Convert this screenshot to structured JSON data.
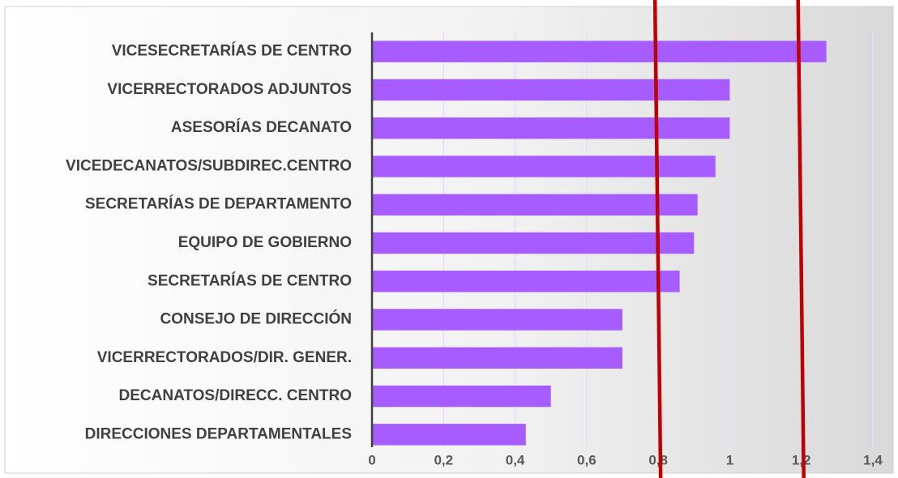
{
  "chart_data": {
    "type": "bar",
    "orientation": "horizontal",
    "categories": [
      "VICESECRETARÍAS DE CENTRO",
      "VICERRECTORADOS ADJUNTOS",
      "ASESORÍAS DECANATO",
      "VICEDECANATOS/SUBDIREC.CENTRO",
      "SECRETARÍAS DE DEPARTAMENTO",
      "EQUIPO DE GOBIERNO",
      "SECRETARÍAS DE CENTRO",
      "CONSEJO DE DIRECCIÓN",
      "VICERRECTORADOS/DIR. GENER.",
      "DECANATOS/DIRECC. CENTRO",
      "DIRECCIONES DEPARTAMENTALES"
    ],
    "values": [
      1.27,
      1.0,
      1.0,
      0.96,
      0.91,
      0.9,
      0.86,
      0.7,
      0.7,
      0.5,
      0.43
    ],
    "color": "#a65cff",
    "xlim": [
      0,
      1.4
    ],
    "xticks": [
      0,
      {
        "value": 0.2,
        "label": "0,2"
      },
      {
        "value": 0.4,
        "label": "0,4"
      },
      {
        "value": 0.6,
        "label": "0,6"
      },
      {
        "value": 0.8,
        "label": "0,8"
      },
      1,
      {
        "value": 1.2,
        "label": "1,2"
      },
      {
        "value": 1.4,
        "label": "1,4"
      }
    ],
    "grid": true,
    "reference_lines": [
      {
        "value": 0.8,
        "color": "#c00000"
      },
      {
        "value": 1.2,
        "color": "#c00000"
      }
    ]
  }
}
